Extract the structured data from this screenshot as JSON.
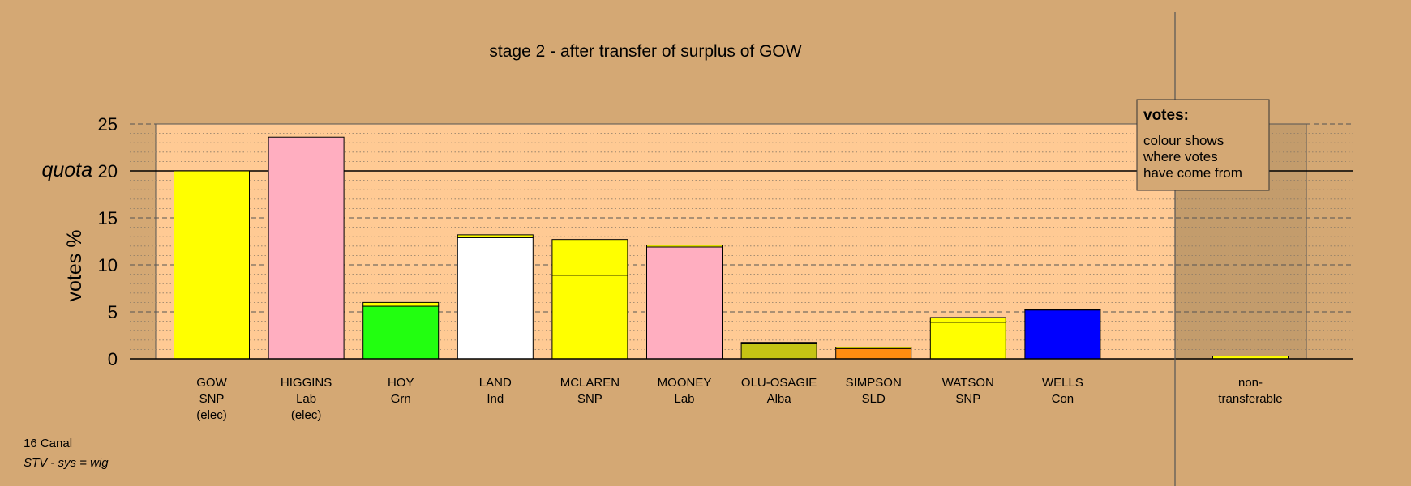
{
  "chart_data": {
    "type": "bar",
    "title": "stage 2 - after transfer of surplus of GOW",
    "ylabel": "votes %",
    "ylim": [
      0,
      25
    ],
    "yticks": [
      0,
      5,
      10,
      15,
      20,
      25
    ],
    "quota": {
      "label": "quota",
      "value": 20
    },
    "grid": true,
    "legend": {
      "title": "votes:",
      "lines": [
        "colour shows",
        "where votes",
        "have come from"
      ],
      "placement": "top-right"
    },
    "candidates": [
      {
        "name": "GOW",
        "party": "SNP",
        "status": "(elec)",
        "segments": [
          {
            "value": 20.0,
            "color": "#ffff00"
          }
        ]
      },
      {
        "name": "HIGGINS",
        "party": "Lab",
        "status": "(elec)",
        "segments": [
          {
            "value": 23.6,
            "color": "#ffaec0"
          }
        ]
      },
      {
        "name": "HOY",
        "party": "Grn",
        "status": "",
        "segments": [
          {
            "value": 5.6,
            "color": "#22ff10"
          },
          {
            "value": 0.4,
            "color": "#ffff00"
          }
        ]
      },
      {
        "name": "LAND",
        "party": "Ind",
        "status": "",
        "segments": [
          {
            "value": 12.9,
            "color": "#ffffff"
          },
          {
            "value": 0.3,
            "color": "#ffff00"
          }
        ]
      },
      {
        "name": "MCLAREN",
        "party": "SNP",
        "status": "",
        "segments": [
          {
            "value": 8.9,
            "color": "#ffff00"
          },
          {
            "value": 3.8,
            "color": "#ffff00"
          }
        ]
      },
      {
        "name": "MOONEY",
        "party": "Lab",
        "status": "",
        "segments": [
          {
            "value": 11.9,
            "color": "#ffaec0"
          },
          {
            "value": 0.2,
            "color": "#ffff00"
          }
        ]
      },
      {
        "name": "OLU-OSAGIE",
        "party": "Alba",
        "status": "",
        "segments": [
          {
            "value": 1.6,
            "color": "#c4c414"
          },
          {
            "value": 0.15,
            "color": "#ffff00"
          }
        ]
      },
      {
        "name": "SIMPSON",
        "party": "SLD",
        "status": "",
        "segments": [
          {
            "value": 1.1,
            "color": "#ff8c10"
          },
          {
            "value": 0.15,
            "color": "#ffff00"
          }
        ]
      },
      {
        "name": "WATSON",
        "party": "SNP",
        "status": "",
        "segments": [
          {
            "value": 3.9,
            "color": "#ffff00"
          },
          {
            "value": 0.5,
            "color": "#ffff00"
          }
        ]
      },
      {
        "name": "WELLS",
        "party": "Con",
        "status": "",
        "segments": [
          {
            "value": 5.2,
            "color": "#0000ff"
          },
          {
            "value": 0.05,
            "color": "#ffff00"
          }
        ]
      }
    ],
    "nontransferable": {
      "lines": [
        "non-",
        "transferable"
      ],
      "segments": [
        {
          "value": 0.3,
          "color": "#ffff00"
        }
      ]
    }
  },
  "footer": {
    "ward": "16 Canal",
    "system": "STV - sys = wig"
  },
  "colors": {
    "background": "#d4a874",
    "plot_area": "#ffca94",
    "right_panel": "#c39c6c",
    "legend_box": "#d4a874"
  }
}
